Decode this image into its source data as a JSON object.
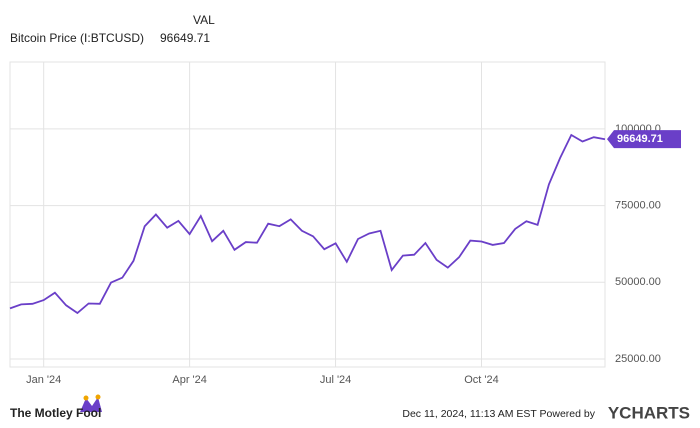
{
  "chart_data": {
    "type": "line",
    "value_header": "VAL",
    "categories": [
      null,
      null,
      null,
      "Jan '24",
      null,
      null,
      null,
      null,
      null,
      null,
      null,
      null,
      null,
      null,
      null,
      null,
      "Apr '24",
      null,
      null,
      null,
      null,
      null,
      null,
      null,
      null,
      null,
      null,
      null,
      null,
      "Jul '24",
      null,
      null,
      null,
      null,
      null,
      null,
      null,
      null,
      null,
      null,
      null,
      null,
      "Oct '24",
      null,
      null,
      null,
      null,
      null,
      null,
      null,
      null,
      null,
      null,
      null
    ],
    "series": [
      {
        "name": "Bitcoin Price (I:BTCUSD)",
        "color": "#6a3fc8",
        "values": [
          41500,
          42800,
          43000,
          44200,
          46600,
          42500,
          40000,
          43100,
          43000,
          49900,
          51500,
          57000,
          68300,
          72100,
          67800,
          70000,
          65700,
          71600,
          63400,
          66800,
          60600,
          63100,
          62900,
          69100,
          68300,
          70500,
          66800,
          65000,
          60800,
          62700,
          56700,
          64100,
          65900,
          66800,
          54000,
          58700,
          59000,
          62800,
          57300,
          54800,
          58200,
          63600,
          63300,
          62200,
          62800,
          67400,
          69900,
          68700,
          81900,
          90500,
          98000,
          95900,
          97300,
          96649.71
        ]
      }
    ],
    "ylim": [
      22400,
      121800
    ],
    "yticks": [
      {
        "value": 25000,
        "label": "25000.00"
      },
      {
        "value": 50000,
        "label": "50000.00"
      },
      {
        "value": 75000,
        "label": "75000.00"
      },
      {
        "value": 100000,
        "label": "100000.0"
      }
    ],
    "grid": true,
    "footer": {
      "brand": "The Motley Fool",
      "timestamp": "Dec 11, 2024, 11:13 AM EST Powered by",
      "provider": "YCHARTS"
    }
  }
}
